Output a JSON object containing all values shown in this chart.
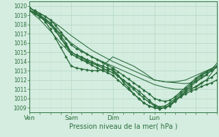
{
  "xlabel": "Pression niveau de la mer( hPa )",
  "bg_color": "#d4ede0",
  "grid_color_major": "#aacfba",
  "grid_color_minor": "#c4e4d4",
  "line_color": "#2d6e3e",
  "tick_label_color": "#2d6e3e",
  "axis_label_color": "#2d6e3e",
  "ylim": [
    1008.5,
    1020.5
  ],
  "xlim": [
    0,
    108
  ],
  "xtick_positions": [
    0,
    24,
    48,
    72,
    96
  ],
  "xtick_labels": [
    "Ven",
    "Sam",
    "Dim",
    "Lun",
    ""
  ],
  "ytick_positions": [
    1009,
    1010,
    1011,
    1012,
    1013,
    1014,
    1015,
    1016,
    1017,
    1018,
    1019,
    1020
  ],
  "series": [
    {
      "x": [
        0,
        3,
        6,
        9,
        12,
        15,
        18,
        21,
        24,
        27,
        30,
        33,
        36,
        39,
        42,
        45,
        48,
        51,
        54,
        57,
        60,
        63,
        66,
        69,
        72,
        75,
        78,
        81,
        84,
        87,
        90,
        93,
        96,
        99,
        102,
        105,
        108
      ],
      "y": [
        1019.5,
        1019.3,
        1019.0,
        1018.6,
        1018.2,
        1017.5,
        1016.8,
        1016.0,
        1015.0,
        1014.7,
        1014.4,
        1014.1,
        1013.8,
        1013.6,
        1013.3,
        1013.0,
        1012.8,
        1012.4,
        1012.0,
        1011.6,
        1011.2,
        1010.8,
        1010.3,
        1009.8,
        1009.3,
        1009.1,
        1009.2,
        1009.5,
        1010.0,
        1010.5,
        1011.0,
        1011.5,
        1012.0,
        1012.5,
        1012.8,
        1013.2,
        1013.5
      ],
      "marker": "D",
      "ms": 2.0,
      "lw": 1.0
    },
    {
      "x": [
        0,
        3,
        6,
        9,
        12,
        15,
        18,
        21,
        24,
        27,
        30,
        33,
        36,
        39,
        42,
        45,
        48,
        51,
        54,
        57,
        60,
        63,
        66,
        69,
        72,
        75,
        78,
        81,
        84,
        87,
        90,
        93,
        96,
        99,
        102,
        105,
        108
      ],
      "y": [
        1019.5,
        1019.2,
        1018.8,
        1018.4,
        1018.0,
        1017.3,
        1016.5,
        1015.7,
        1014.8,
        1014.5,
        1014.2,
        1013.9,
        1013.6,
        1013.3,
        1013.0,
        1012.8,
        1012.5,
        1012.0,
        1011.5,
        1011.0,
        1010.5,
        1010.0,
        1009.5,
        1009.2,
        1009.0,
        1008.9,
        1009.0,
        1009.3,
        1009.8,
        1010.3,
        1010.8,
        1011.3,
        1011.8,
        1012.3,
        1012.6,
        1013.0,
        1013.4
      ],
      "marker": "D",
      "ms": 2.0,
      "lw": 1.0
    },
    {
      "x": [
        0,
        3,
        6,
        9,
        12,
        15,
        18,
        21,
        24,
        27,
        30,
        33,
        36,
        39,
        42,
        45,
        48,
        51,
        54,
        57,
        60,
        63,
        66,
        69,
        72,
        75,
        78,
        81,
        84,
        87,
        90,
        93,
        96,
        99,
        102,
        105,
        108
      ],
      "y": [
        1019.8,
        1019.5,
        1019.2,
        1018.9,
        1018.5,
        1017.9,
        1017.2,
        1016.5,
        1015.8,
        1015.4,
        1015.1,
        1014.8,
        1014.5,
        1014.2,
        1013.9,
        1013.6,
        1013.3,
        1012.9,
        1012.5,
        1012.1,
        1011.7,
        1011.3,
        1010.9,
        1010.5,
        1010.0,
        1009.8,
        1009.7,
        1009.8,
        1010.2,
        1010.7,
        1011.2,
        1011.7,
        1012.2,
        1012.6,
        1012.9,
        1013.2,
        1013.5
      ],
      "marker": "D",
      "ms": 2.0,
      "lw": 1.0
    },
    {
      "x": [
        0,
        6,
        12,
        18,
        24,
        30,
        36,
        42,
        48,
        54,
        60,
        66,
        72,
        78,
        84,
        90,
        96,
        102,
        108
      ],
      "y": [
        1019.5,
        1018.8,
        1018.0,
        1017.0,
        1016.0,
        1015.2,
        1014.5,
        1014.0,
        1013.5,
        1013.0,
        1012.5,
        1012.0,
        1011.5,
        1011.2,
        1011.0,
        1011.0,
        1011.2,
        1012.0,
        1013.5
      ],
      "marker": null,
      "ms": 0,
      "lw": 0.8
    },
    {
      "x": [
        0,
        6,
        12,
        18,
        24,
        30,
        36,
        42,
        48,
        54,
        60,
        66,
        72,
        78,
        84,
        90,
        96,
        102,
        108
      ],
      "y": [
        1019.8,
        1019.2,
        1018.5,
        1017.7,
        1016.8,
        1016.0,
        1015.2,
        1014.6,
        1014.0,
        1013.5,
        1013.0,
        1012.5,
        1012.0,
        1011.8,
        1011.7,
        1011.6,
        1011.8,
        1012.5,
        1013.8
      ],
      "marker": null,
      "ms": 0,
      "lw": 0.8
    },
    {
      "x": [
        0,
        3,
        6,
        9,
        12,
        15,
        18,
        21,
        24,
        27,
        30,
        33,
        36,
        39,
        42,
        45,
        48,
        51,
        54,
        57,
        60,
        63,
        66,
        69,
        72,
        75,
        78,
        81,
        84,
        87,
        90,
        93,
        96,
        99,
        102,
        105,
        108
      ],
      "y": [
        1019.8,
        1019.4,
        1019.0,
        1018.3,
        1017.5,
        1016.5,
        1015.5,
        1014.5,
        1013.5,
        1013.3,
        1013.2,
        1013.1,
        1013.0,
        1013.0,
        1013.1,
        1013.1,
        1013.2,
        1012.5,
        1011.8,
        1011.2,
        1010.5,
        1010.0,
        1009.5,
        1009.2,
        1009.0,
        1008.9,
        1009.0,
        1009.3,
        1009.8,
        1010.2,
        1010.5,
        1010.8,
        1011.0,
        1011.3,
        1011.5,
        1011.7,
        1012.0
      ],
      "marker": "D",
      "ms": 2.0,
      "lw": 1.0
    },
    {
      "x": [
        0,
        3,
        6,
        9,
        12,
        15,
        18,
        21,
        24,
        27,
        30,
        33,
        36,
        39,
        42,
        45,
        48,
        51,
        54,
        57,
        60,
        63,
        66,
        69,
        72,
        75,
        78,
        81,
        84,
        87,
        90,
        93,
        96,
        99,
        102,
        105,
        108
      ],
      "y": [
        1019.5,
        1019.3,
        1019.0,
        1018.5,
        1018.0,
        1017.3,
        1016.5,
        1015.8,
        1015.0,
        1014.7,
        1014.5,
        1014.2,
        1014.0,
        1013.7,
        1013.5,
        1013.3,
        1013.0,
        1012.5,
        1012.0,
        1011.5,
        1011.0,
        1010.5,
        1010.0,
        1009.6,
        1009.2,
        1009.0,
        1009.0,
        1009.2,
        1009.7,
        1010.2,
        1010.7,
        1011.0,
        1011.3,
        1011.7,
        1012.0,
        1012.3,
        1012.8
      ],
      "marker": "D",
      "ms": 2.0,
      "lw": 1.0
    },
    {
      "x": [
        0,
        6,
        12,
        18,
        24,
        30,
        36,
        42,
        48,
        54,
        60,
        66,
        72,
        78,
        84,
        90,
        96,
        102,
        108
      ],
      "y": [
        1019.5,
        1018.5,
        1017.3,
        1016.0,
        1014.8,
        1014.2,
        1013.8,
        1013.5,
        1014.5,
        1014.0,
        1013.5,
        1012.8,
        1012.0,
        1011.8,
        1011.8,
        1012.0,
        1012.5,
        1013.0,
        1013.5
      ],
      "marker": null,
      "ms": 0,
      "lw": 0.8
    }
  ]
}
